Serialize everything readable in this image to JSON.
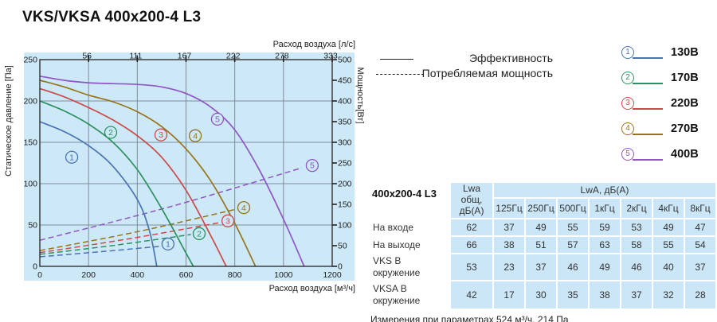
{
  "title": "VKS/VKSA 400x200-4 L3",
  "legend": {
    "efficiency": "Эффективность",
    "power": "Потребляемая мощность"
  },
  "voltages": [
    {
      "num": "1",
      "label": "130В",
      "color": "#4a73b2"
    },
    {
      "num": "2",
      "label": "170В",
      "color": "#2e9060"
    },
    {
      "num": "3",
      "label": "220В",
      "color": "#cc4949"
    },
    {
      "num": "4",
      "label": "270В",
      "color": "#97731d"
    },
    {
      "num": "5",
      "label": "400В",
      "color": "#8f55c4"
    }
  ],
  "chart_data": {
    "type": "line",
    "title": "",
    "xlabel_top": "Расход воздуха [л/с]",
    "xlabel_bottom": "Расход воздуха [м³/ч]",
    "ylabel_left": "Статическое давление [Па]",
    "ylabel_right": "Мощность[Вт]",
    "xlim": [
      0,
      1200
    ],
    "ylim_left": [
      0,
      250
    ],
    "ylim_right": [
      0,
      500
    ],
    "x_ticks_bottom": [
      0,
      200,
      400,
      600,
      800,
      1000,
      1200
    ],
    "x_ticks_top_labels": [
      "56",
      "111",
      "167",
      "222",
      "278",
      "333"
    ],
    "y_ticks_left": [
      0,
      50,
      100,
      150,
      200,
      250
    ],
    "y_ticks_right": [
      0,
      50,
      100,
      150,
      200,
      250,
      300,
      350,
      400,
      450,
      500
    ],
    "grid": true,
    "panel_color": "#cde9f8",
    "grid_color": "#7d8c9b",
    "series": [
      {
        "num": "1",
        "name": "130В",
        "color": "#4a73b2",
        "pressure": [
          [
            0,
            175
          ],
          [
            100,
            163
          ],
          [
            200,
            146
          ],
          [
            300,
            121
          ],
          [
            400,
            81
          ],
          [
            450,
            43
          ],
          [
            480,
            0
          ]
        ],
        "power": [
          [
            0,
            23
          ],
          [
            260,
            36
          ],
          [
            505,
            49
          ]
        ],
        "label_pressure": [
          131,
          132
        ],
        "label_power": [
          526,
          54
        ]
      },
      {
        "num": "2",
        "name": "170В",
        "color": "#2e9060",
        "pressure": [
          [
            0,
            200
          ],
          [
            100,
            188
          ],
          [
            200,
            172
          ],
          [
            300,
            150
          ],
          [
            400,
            117
          ],
          [
            500,
            70
          ],
          [
            600,
            16
          ],
          [
            630,
            0
          ]
        ],
        "power": [
          [
            0,
            29
          ],
          [
            320,
            52
          ],
          [
            620,
            77
          ]
        ],
        "label_pressure": [
          291,
          162
        ],
        "label_power": [
          654,
          79
        ]
      },
      {
        "num": "3",
        "name": "220В",
        "color": "#cc4949",
        "pressure": [
          [
            0,
            215
          ],
          [
            100,
            205
          ],
          [
            200,
            192
          ],
          [
            300,
            177
          ],
          [
            400,
            158
          ],
          [
            500,
            132
          ],
          [
            600,
            92
          ],
          [
            700,
            38
          ],
          [
            765,
            0
          ]
        ],
        "power": [
          [
            0,
            33
          ],
          [
            380,
            68
          ],
          [
            740,
            106
          ]
        ],
        "label_pressure": [
          497,
          159
        ],
        "label_power": [
          772,
          110
        ]
      },
      {
        "num": "4",
        "name": "270В",
        "color": "#97731d",
        "pressure": [
          [
            0,
            225
          ],
          [
            100,
            217
          ],
          [
            200,
            207
          ],
          [
            300,
            199
          ],
          [
            400,
            187
          ],
          [
            500,
            169
          ],
          [
            600,
            142
          ],
          [
            700,
            104
          ],
          [
            800,
            52
          ],
          [
            885,
            0
          ]
        ],
        "power": [
          [
            0,
            38
          ],
          [
            410,
            85
          ],
          [
            805,
            138
          ]
        ],
        "label_pressure": [
          638,
          158
        ],
        "label_power": [
          837,
          142
        ]
      },
      {
        "num": "5",
        "name": "400В",
        "color": "#8f55c4",
        "pressure": [
          [
            0,
            230
          ],
          [
            100,
            225
          ],
          [
            200,
            222
          ],
          [
            300,
            221
          ],
          [
            400,
            220
          ],
          [
            500,
            217
          ],
          [
            600,
            209
          ],
          [
            700,
            193
          ],
          [
            800,
            165
          ],
          [
            900,
            117
          ],
          [
            1000,
            57
          ],
          [
            1085,
            0
          ]
        ],
        "power": [
          [
            0,
            63
          ],
          [
            540,
            145
          ],
          [
            1075,
            238
          ]
        ],
        "label_pressure": [
          729,
          178
        ],
        "label_power": [
          1118,
          244
        ]
      }
    ]
  },
  "table": {
    "model": "400x200-4 L3",
    "col1_header_lines": "Lwa\nобщ,\nдБ(A)",
    "group_header": "LwA, дБ(A)",
    "freq_headers": [
      "125Гц",
      "250Гц",
      "500Гц",
      "1кГц",
      "2кГц",
      "4кГц",
      "8кГц"
    ],
    "rows": [
      {
        "label": "На входе",
        "total": "62",
        "values": [
          "37",
          "49",
          "55",
          "59",
          "53",
          "49",
          "47"
        ]
      },
      {
        "label": "На выходе",
        "total": "66",
        "values": [
          "38",
          "51",
          "57",
          "63",
          "58",
          "55",
          "54"
        ]
      },
      {
        "label": "VKS В окружение",
        "total": "53",
        "values": [
          "23",
          "37",
          "46",
          "49",
          "46",
          "40",
          "37"
        ]
      },
      {
        "label": "VKSA В окружение",
        "total": "42",
        "values": [
          "17",
          "30",
          "35",
          "38",
          "37",
          "32",
          "28"
        ]
      }
    ],
    "note": "Измерения при параметрах 524 м³/ч, 214 Па"
  }
}
